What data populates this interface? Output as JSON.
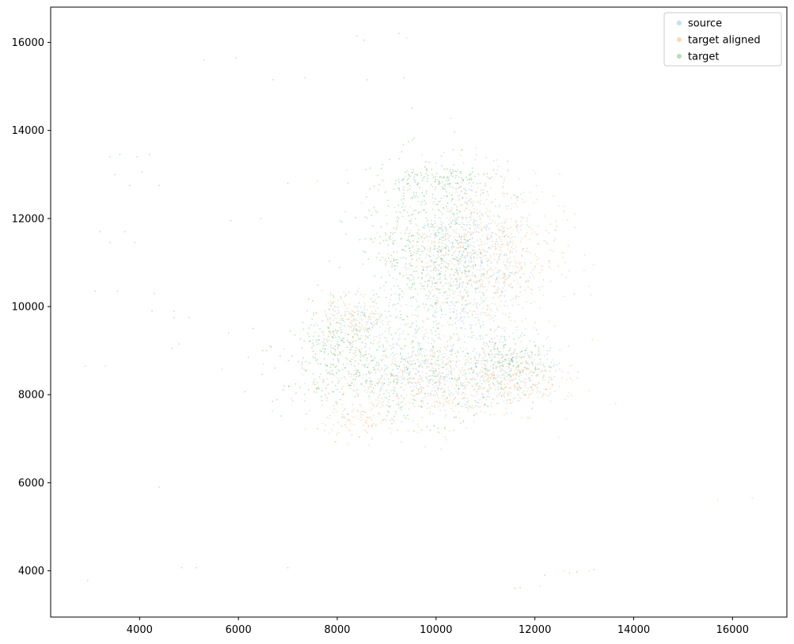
{
  "chart_data": {
    "type": "scatter",
    "title": "",
    "xlabel": "",
    "ylabel": "",
    "xlim": [
      2200,
      17100
    ],
    "ylim": [
      2950,
      16800
    ],
    "xticks": [
      4000,
      6000,
      8000,
      10000,
      12000,
      14000,
      16000
    ],
    "yticks": [
      4000,
      6000,
      8000,
      10000,
      12000,
      14000,
      16000
    ],
    "xtick_labels": [
      "4000",
      "6000",
      "8000",
      "10000",
      "12000",
      "14000",
      "16000"
    ],
    "ytick_labels": [
      "4000",
      "6000",
      "8000",
      "10000",
      "12000",
      "14000",
      "16000"
    ],
    "grid": false,
    "legend": {
      "placement": "upper-right"
    },
    "series": [
      {
        "name": "source",
        "color": "#1f77b4",
        "alpha": 0.2,
        "clusters": [
          {
            "cx": 10600,
            "cy": 11000,
            "sx": 700,
            "sy": 1000,
            "n": 700
          },
          {
            "cx": 9800,
            "cy": 8500,
            "sx": 1100,
            "sy": 500,
            "n": 400
          },
          {
            "cx": 11500,
            "cy": 8600,
            "sx": 500,
            "sy": 300,
            "n": 150
          },
          {
            "cx": 8600,
            "cy": 9600,
            "sx": 400,
            "sy": 300,
            "n": 100
          }
        ],
        "outliers": []
      },
      {
        "name": "target aligned",
        "color": "#ff7f0e",
        "alpha": 0.25,
        "clusters": [
          {
            "cx": 10900,
            "cy": 11200,
            "sx": 800,
            "sy": 900,
            "n": 650
          },
          {
            "cx": 10000,
            "cy": 8300,
            "sx": 1100,
            "sy": 500,
            "n": 450
          },
          {
            "cx": 11600,
            "cy": 8400,
            "sx": 450,
            "sy": 300,
            "n": 150
          },
          {
            "cx": 8300,
            "cy": 9700,
            "sx": 300,
            "sy": 300,
            "n": 120
          },
          {
            "cx": 8500,
            "cy": 7400,
            "sx": 400,
            "sy": 200,
            "n": 80
          }
        ],
        "outliers": [
          [
            3300,
            8650
          ],
          [
            7600,
            12850
          ],
          [
            10800,
            13600
          ],
          [
            12600,
            4000
          ],
          [
            13100,
            4000
          ],
          [
            12100,
            3650
          ],
          [
            15700,
            5620
          ],
          [
            16400,
            5650
          ],
          [
            9400,
            16100
          ]
        ]
      },
      {
        "name": "target",
        "color": "#2ca02c",
        "alpha": 0.3,
        "clusters": [
          {
            "cx": 9800,
            "cy": 11200,
            "sx": 700,
            "sy": 1000,
            "n": 550
          },
          {
            "cx": 9200,
            "cy": 8400,
            "sx": 1200,
            "sy": 500,
            "n": 450
          },
          {
            "cx": 7900,
            "cy": 9300,
            "sx": 350,
            "sy": 500,
            "n": 150
          },
          {
            "cx": 10000,
            "cy": 12900,
            "sx": 600,
            "sy": 150,
            "n": 120
          },
          {
            "cx": 11500,
            "cy": 8700,
            "sx": 400,
            "sy": 300,
            "n": 120
          }
        ],
        "outliers": [
          [
            3400,
            13400
          ],
          [
            3600,
            13450
          ],
          [
            3950,
            13400
          ],
          [
            4200,
            13450
          ],
          [
            3800,
            12750
          ],
          [
            4050,
            13050
          ],
          [
            4400,
            12750
          ],
          [
            3500,
            13000
          ],
          [
            3200,
            11700
          ],
          [
            3700,
            11700
          ],
          [
            3400,
            11450
          ],
          [
            3900,
            11450
          ],
          [
            3100,
            10350
          ],
          [
            3550,
            10350
          ],
          [
            4300,
            10300
          ],
          [
            4250,
            9900
          ],
          [
            4700,
            9900
          ],
          [
            5000,
            9750
          ],
          [
            4700,
            9750
          ],
          [
            4800,
            9150
          ],
          [
            4650,
            9050
          ],
          [
            5800,
            9400
          ],
          [
            6200,
            8850
          ],
          [
            6300,
            9500
          ],
          [
            2900,
            8650
          ],
          [
            5300,
            15600
          ],
          [
            5950,
            15650
          ],
          [
            6700,
            15150
          ],
          [
            7350,
            15200
          ],
          [
            8400,
            16150
          ],
          [
            8550,
            16050
          ],
          [
            9250,
            16200
          ],
          [
            8600,
            15150
          ],
          [
            9350,
            15200
          ],
          [
            7000,
            12800
          ],
          [
            5850,
            11950
          ],
          [
            6450,
            12000
          ],
          [
            4400,
            5900
          ],
          [
            4850,
            4070
          ],
          [
            5150,
            4070
          ],
          [
            7000,
            4070
          ],
          [
            2950,
            3780
          ],
          [
            11600,
            3600
          ],
          [
            11700,
            3620
          ],
          [
            12200,
            3900
          ],
          [
            12700,
            3950
          ],
          [
            12850,
            3980
          ],
          [
            13200,
            4030
          ]
        ]
      }
    ]
  }
}
